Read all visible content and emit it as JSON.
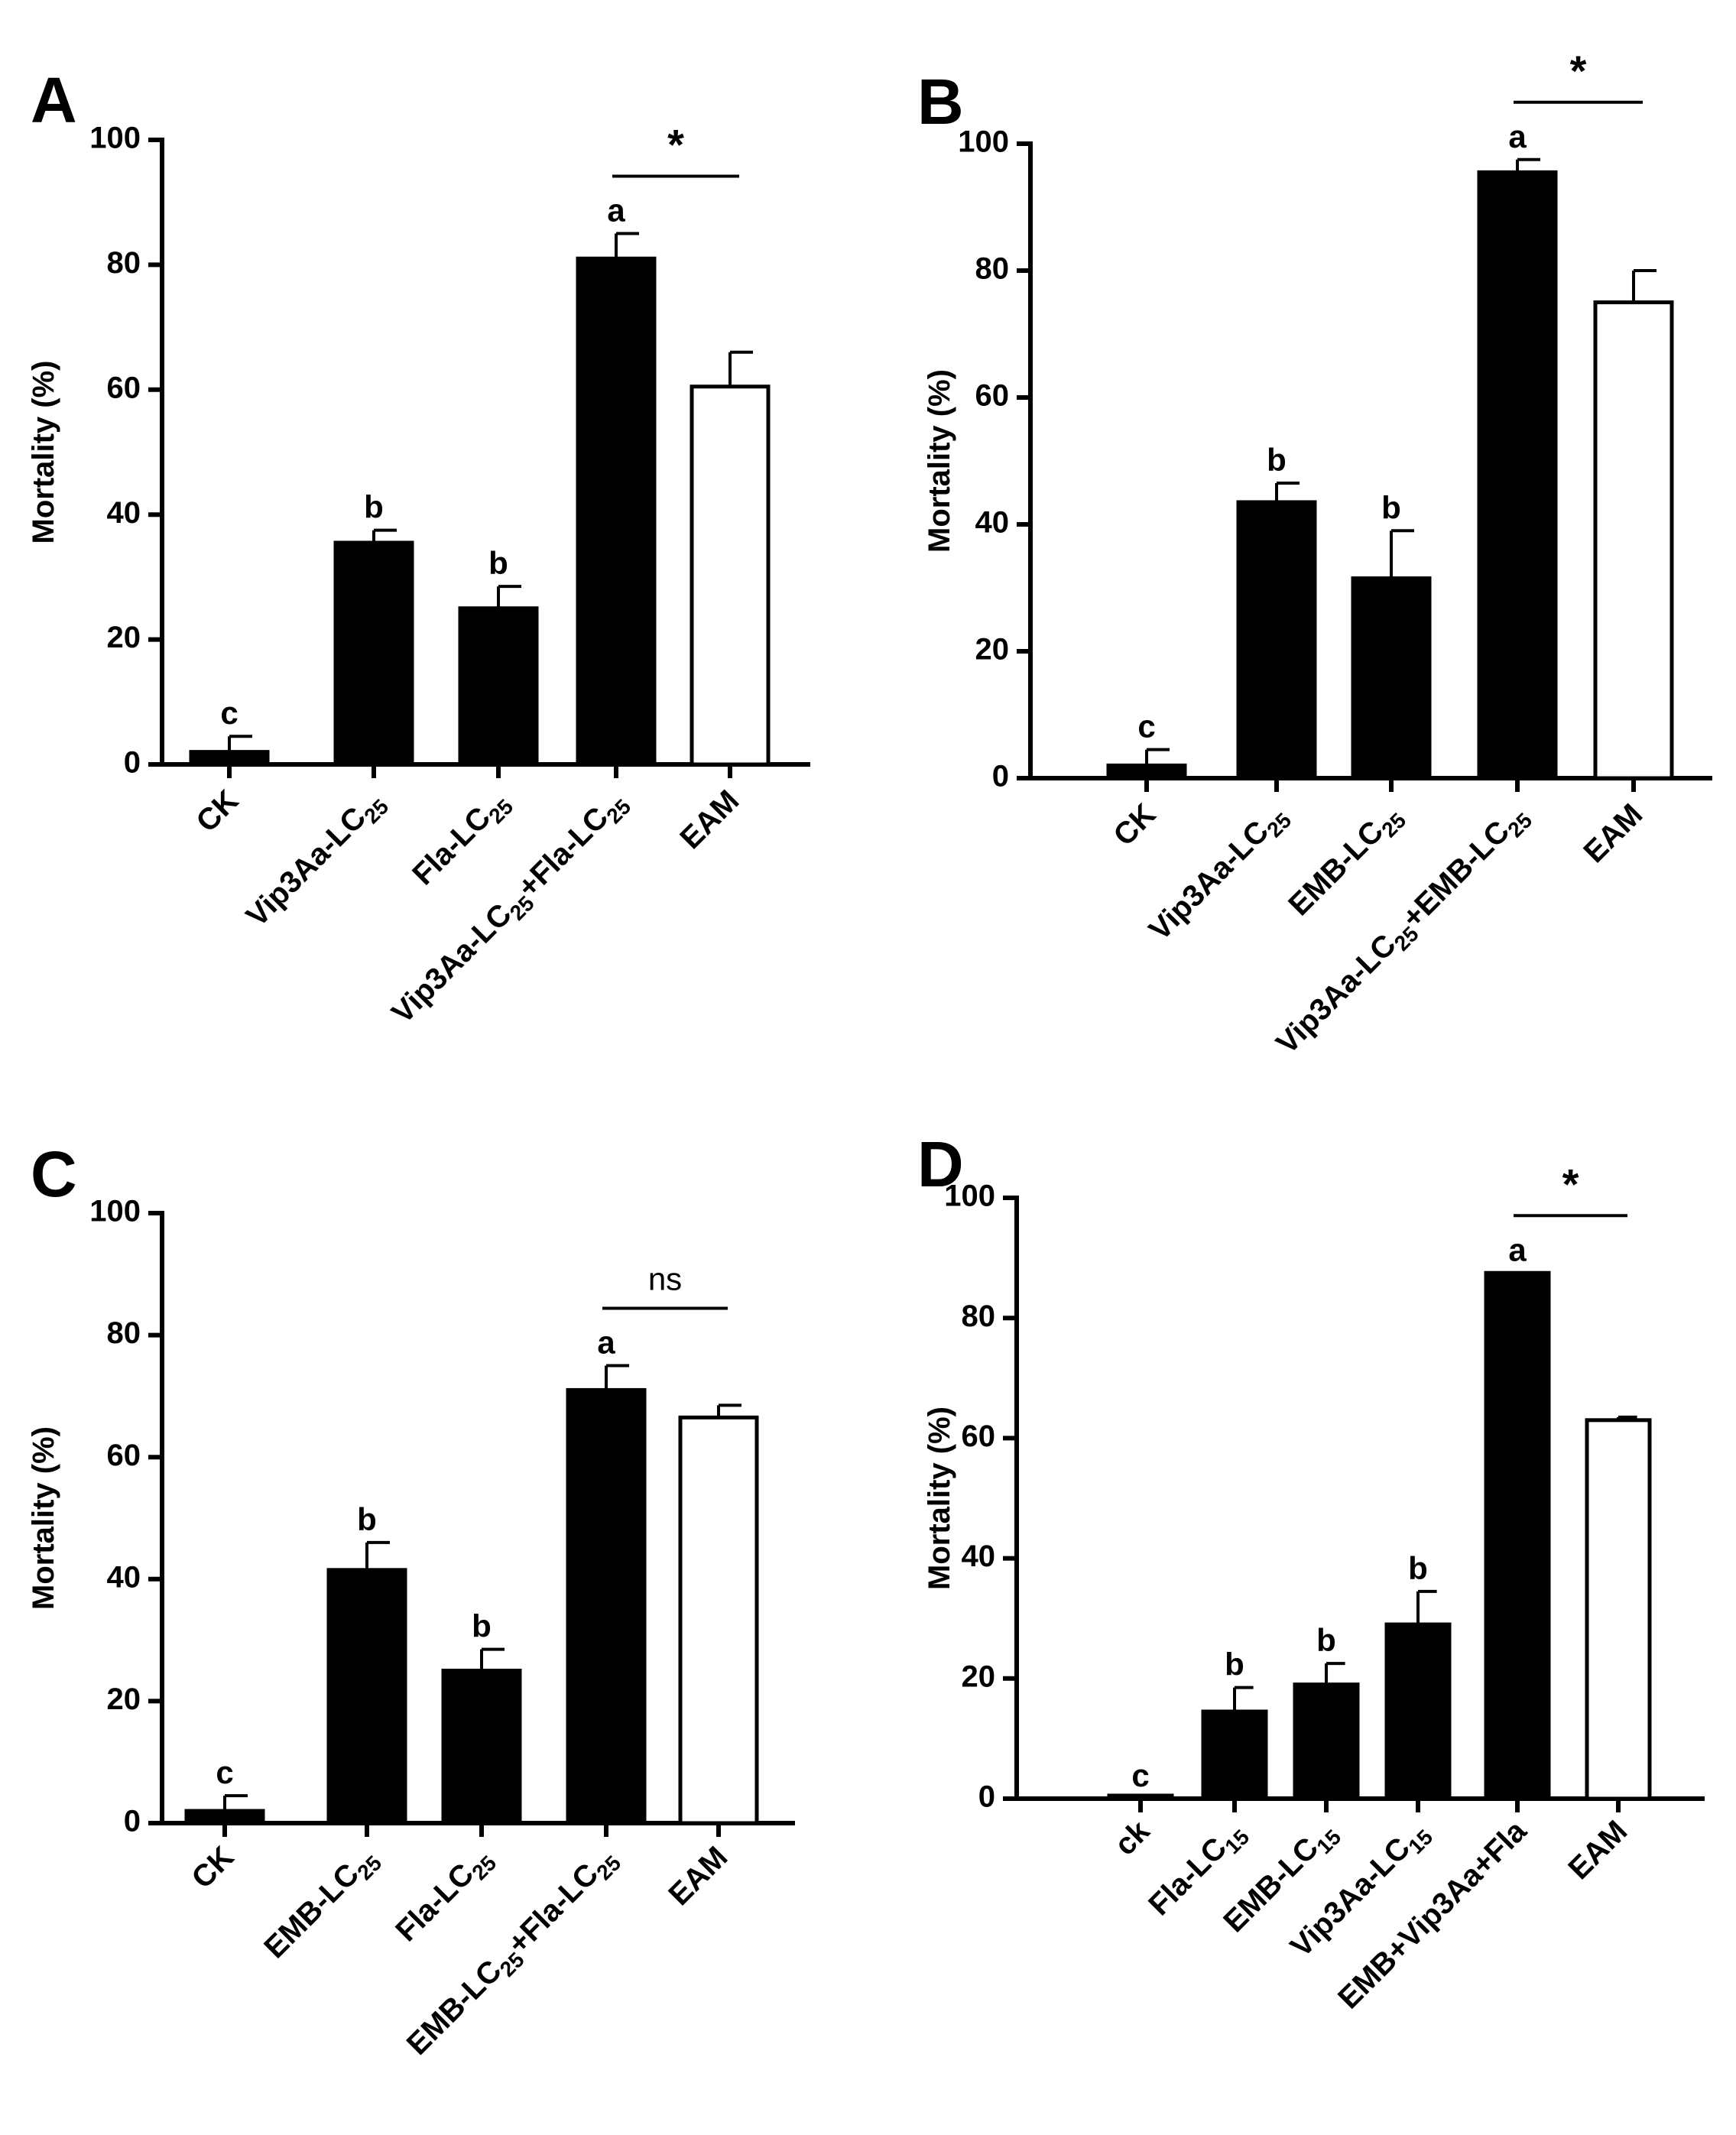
{
  "chart_data": [
    {
      "type": "bar",
      "panel": "A",
      "ylabel": "Mortality (%)",
      "ylim": [
        0,
        100
      ],
      "yticks": [
        "0",
        "20",
        "40",
        "60",
        "80",
        "100"
      ],
      "categories": [
        {
          "main": "CK",
          "sub": "",
          "tail": ""
        },
        {
          "main": "Vip3Aa-LC",
          "sub": "25",
          "tail": ""
        },
        {
          "main": "Fla-LC",
          "sub": "25",
          "tail": ""
        },
        {
          "main": "Vip3Aa-LC",
          "sub": "25",
          "tail": "+Fla-LC",
          "sub2": "25"
        },
        {
          "main": "EAM",
          "sub": "",
          "tail": ""
        }
      ],
      "values": [
        2,
        35.5,
        25,
        81,
        60.5
      ],
      "errors": [
        2.5,
        2,
        3.5,
        4,
        5.5
      ],
      "fills": [
        "#000000",
        "#000000",
        "#000000",
        "#000000",
        "#ffffff"
      ],
      "letters": [
        "c",
        "b",
        "b",
        "a",
        ""
      ],
      "comparison": {
        "from": 3,
        "to": 4,
        "label": "*"
      }
    },
    {
      "type": "bar",
      "panel": "B",
      "ylabel": "Mortality (%)",
      "ylim": [
        0,
        100
      ],
      "yticks": [
        "0",
        "20",
        "40",
        "60",
        "80",
        "100"
      ],
      "categories": [
        {
          "main": "CK",
          "sub": "",
          "tail": ""
        },
        {
          "main": "Vip3Aa-LC",
          "sub": "25",
          "tail": ""
        },
        {
          "main": "EMB-LC",
          "sub": "25",
          "tail": ""
        },
        {
          "main": "Vip3Aa-LC",
          "sub": "25",
          "tail": "+EMB-LC",
          "sub2": "25"
        },
        {
          "main": "EAM",
          "sub": "",
          "tail": ""
        }
      ],
      "values": [
        2,
        43.5,
        31.5,
        95.5,
        75
      ],
      "errors": [
        2.5,
        3,
        7.5,
        2,
        5
      ],
      "fills": [
        "#000000",
        "#000000",
        "#000000",
        "#000000",
        "#ffffff"
      ],
      "letters": [
        "c",
        "b",
        "b",
        "a",
        ""
      ],
      "comparison": {
        "from": 3,
        "to": 4,
        "label": "*"
      }
    },
    {
      "type": "bar",
      "panel": "C",
      "ylabel": "Mortality (%)",
      "ylim": [
        0,
        100
      ],
      "yticks": [
        "0",
        "20",
        "40",
        "60",
        "80",
        "100"
      ],
      "categories": [
        {
          "main": "CK",
          "sub": "",
          "tail": ""
        },
        {
          "main": "EMB-LC",
          "sub": "25",
          "tail": ""
        },
        {
          "main": "Fla-LC",
          "sub": "25",
          "tail": ""
        },
        {
          "main": "EMB-LC",
          "sub": "25",
          "tail": "+Fla-LC",
          "sub2": "25"
        },
        {
          "main": "EAM",
          "sub": "",
          "tail": ""
        }
      ],
      "values": [
        2,
        41.5,
        25,
        71,
        66.5
      ],
      "errors": [
        2.5,
        4.5,
        3.5,
        4,
        2
      ],
      "fills": [
        "#000000",
        "#000000",
        "#000000",
        "#000000",
        "#ffffff"
      ],
      "letters": [
        "c",
        "b",
        "b",
        "a",
        ""
      ],
      "comparison": {
        "from": 3,
        "to": 4,
        "label": "ns"
      }
    },
    {
      "type": "bar",
      "panel": "D",
      "ylabel": "Mortality (%)",
      "ylim": [
        0,
        100
      ],
      "yticks": [
        "0",
        "20",
        "40",
        "60",
        "80",
        "100"
      ],
      "categories": [
        {
          "main": "ck",
          "sub": "",
          "tail": ""
        },
        {
          "main": "Fla-LC",
          "sub": "15",
          "tail": ""
        },
        {
          "main": "EMB-LC",
          "sub": "15",
          "tail": ""
        },
        {
          "main": "Vip3Aa-LC",
          "sub": "15",
          "tail": ""
        },
        {
          "main": "EMB+Vip3Aa+Fla",
          "sub": "",
          "tail": ""
        },
        {
          "main": "EAM",
          "sub": "",
          "tail": ""
        }
      ],
      "values": [
        0,
        14.5,
        19,
        29,
        87.5,
        63
      ],
      "errors": [
        0,
        4,
        3.5,
        5.5,
        0,
        0.5
      ],
      "fills": [
        "#000000",
        "#000000",
        "#000000",
        "#000000",
        "#000000",
        "#ffffff"
      ],
      "letters": [
        "c",
        "b",
        "b",
        "b",
        "a",
        ""
      ],
      "comparison": {
        "from": 4,
        "to": 5,
        "label": "*"
      }
    }
  ]
}
